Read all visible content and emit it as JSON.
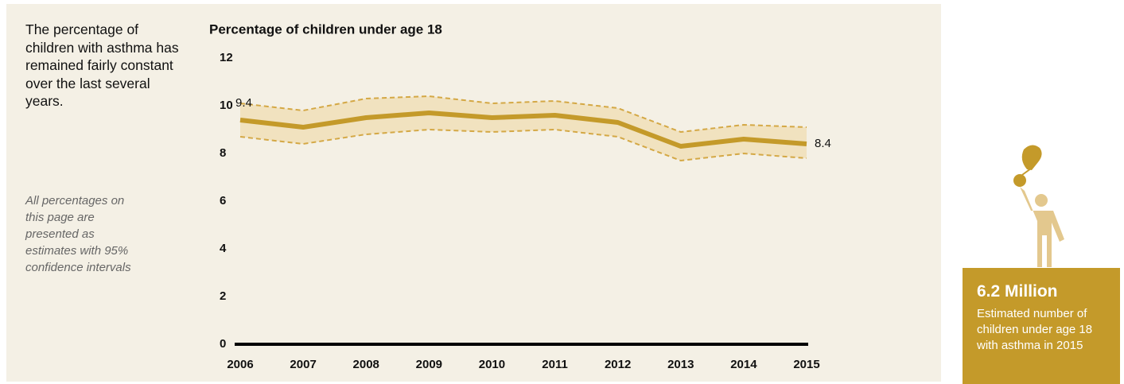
{
  "summary": "The percentage of children with asthma has remained fairly constant over the last several years.",
  "note": "All percentages on this page are presented as estimates with 95% confidence intervals",
  "callout": {
    "headline": "6.2 Million",
    "text": "Estimated number of children under age 18 with asthma in 2015"
  },
  "chart_data": {
    "type": "line",
    "title": "Percentage of children under age 18",
    "categories": [
      "2006",
      "2007",
      "2008",
      "2009",
      "2010",
      "2011",
      "2012",
      "2013",
      "2014",
      "2015"
    ],
    "series": [
      {
        "color": "#c49a2a",
        "values": [
          9.4,
          9.1,
          9.5,
          9.7,
          9.5,
          9.6,
          9.3,
          8.3,
          8.6,
          8.4
        ],
        "ci": {
          "color": "#d4a845",
          "fill": "#f1e2bf",
          "upper": [
            10.1,
            9.8,
            10.3,
            10.4,
            10.1,
            10.2,
            9.9,
            8.9,
            9.2,
            9.1
          ],
          "lower": [
            8.7,
            8.4,
            8.8,
            9.0,
            8.9,
            9.0,
            8.7,
            7.7,
            8.0,
            7.8
          ]
        }
      }
    ],
    "ylim": [
      0,
      12
    ],
    "yticks": [
      0,
      2,
      4,
      6,
      8,
      10,
      12
    ],
    "grid": false
  }
}
